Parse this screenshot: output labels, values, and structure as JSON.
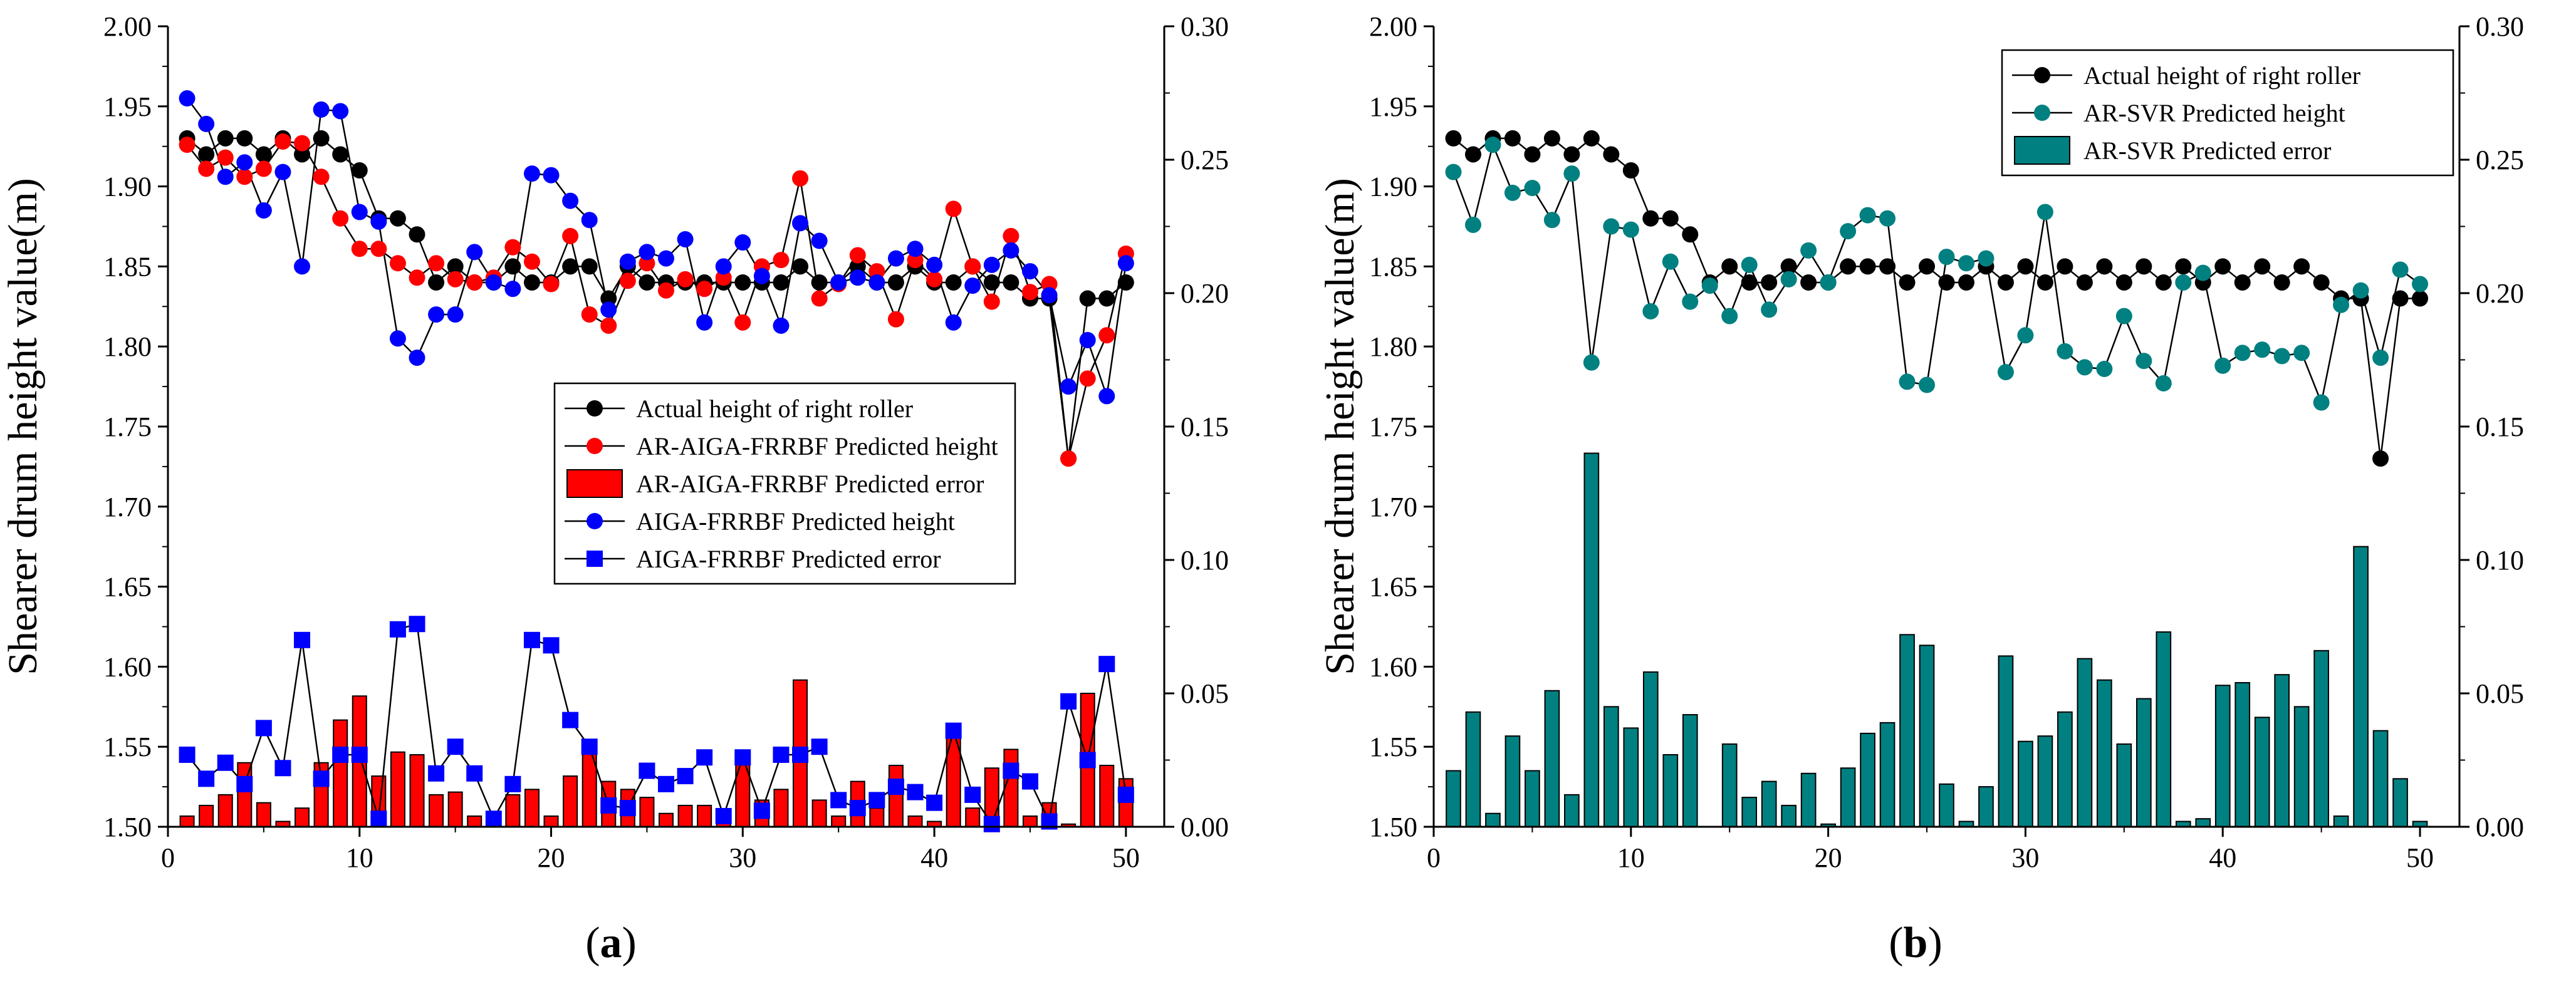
{
  "chart_data": [
    {
      "type": "line",
      "panel_label": "a",
      "title": "",
      "xlabel": "",
      "ylabel": "Shearer drum height value(m)",
      "xlim": [
        0,
        52
      ],
      "xticks": [
        0,
        10,
        20,
        30,
        40,
        50
      ],
      "ylim": [
        1.5,
        2.0
      ],
      "yticks": [
        "1.50",
        "1.55",
        "1.60",
        "1.65",
        "1.70",
        "1.75",
        "1.80",
        "1.85",
        "1.90",
        "1.95",
        "2.00"
      ],
      "y2lim": [
        0,
        0.3
      ],
      "y2ticks": [
        "0.00",
        "0.05",
        "0.10",
        "0.15",
        "0.20",
        "0.25",
        "0.30"
      ],
      "legend_position": "center-right",
      "x": [
        1,
        2,
        3,
        4,
        5,
        6,
        7,
        8,
        9,
        10,
        11,
        12,
        13,
        14,
        15,
        16,
        17,
        18,
        19,
        20,
        21,
        22,
        23,
        24,
        25,
        26,
        27,
        28,
        29,
        30,
        31,
        32,
        33,
        34,
        35,
        36,
        37,
        38,
        39,
        40,
        41,
        42,
        43,
        44,
        45,
        46,
        47,
        48,
        49,
        50
      ],
      "series": [
        {
          "name": "Actual height of right roller",
          "axis": "left",
          "kind": "line",
          "marker": "circle",
          "color": "#000000",
          "line_color": "#000000",
          "values": [
            1.93,
            1.92,
            1.93,
            1.93,
            1.92,
            1.93,
            1.92,
            1.93,
            1.92,
            1.91,
            1.88,
            1.88,
            1.87,
            1.84,
            1.85,
            1.84,
            1.84,
            1.85,
            1.84,
            1.84,
            1.85,
            1.85,
            1.83,
            1.85,
            1.84,
            1.84,
            1.84,
            1.84,
            1.84,
            1.84,
            1.84,
            1.84,
            1.85,
            1.84,
            1.84,
            1.85,
            1.84,
            1.84,
            1.85,
            1.84,
            1.84,
            1.85,
            1.84,
            1.84,
            1.83,
            1.83,
            1.73,
            1.83,
            1.83,
            1.84
          ]
        },
        {
          "name": "AR-AIGA-FRRBF Predicted height",
          "axis": "left",
          "kind": "line",
          "marker": "circle",
          "color": "#ff0000",
          "line_color": "#000000",
          "values": [
            1.926,
            1.911,
            1.918,
            1.906,
            1.911,
            1.928,
            1.927,
            1.906,
            1.88,
            1.861,
            1.861,
            1.852,
            1.843,
            1.852,
            1.842,
            1.84,
            1.843,
            1.862,
            1.853,
            1.839,
            1.869,
            1.82,
            1.813,
            1.841,
            1.852,
            1.835,
            1.842,
            1.836,
            1.843,
            1.815,
            1.85,
            1.854,
            1.905,
            1.83,
            1.839,
            1.857,
            1.847,
            1.817,
            1.854,
            1.842,
            1.886,
            1.85,
            1.828,
            1.869,
            1.834,
            1.839,
            1.73,
            1.78,
            1.807,
            1.858
          ]
        },
        {
          "name": "AR-AIGA-FRRBF Predicted error",
          "axis": "right",
          "kind": "bar",
          "color": "#ff0000",
          "line_color": "#000000",
          "values": [
            0.004,
            0.008,
            0.012,
            0.024,
            0.009,
            0.002,
            0.007,
            0.024,
            0.04,
            0.049,
            0.019,
            0.028,
            0.027,
            0.012,
            0.013,
            0.004,
            0.003,
            0.012,
            0.014,
            0.004,
            0.019,
            0.03,
            0.017,
            0.014,
            0.011,
            0.005,
            0.008,
            0.008,
            0.003,
            0.025,
            0.01,
            0.014,
            0.055,
            0.01,
            0.004,
            0.017,
            0.007,
            0.023,
            0.004,
            0.002,
            0.036,
            0.007,
            0.022,
            0.029,
            0.004,
            0.009,
            0.001,
            0.05,
            0.023,
            0.018
          ]
        },
        {
          "name": "AIGA-FRRBF Predicted height",
          "axis": "left",
          "kind": "line",
          "marker": "circle",
          "color": "#0000ff",
          "line_color": "#000000",
          "values": [
            1.955,
            1.939,
            1.906,
            1.915,
            1.885,
            1.909,
            1.85,
            1.948,
            1.947,
            1.884,
            1.878,
            1.805,
            1.793,
            1.82,
            1.82,
            1.859,
            1.84,
            1.836,
            1.908,
            1.907,
            1.891,
            1.879,
            1.823,
            1.853,
            1.859,
            1.855,
            1.867,
            1.815,
            1.85,
            1.865,
            1.844,
            1.813,
            1.877,
            1.866,
            1.84,
            1.843,
            1.84,
            1.855,
            1.861,
            1.851,
            1.815,
            1.838,
            1.851,
            1.86,
            1.847,
            1.832,
            1.775,
            1.804,
            1.769,
            1.852
          ]
        },
        {
          "name": "AIGA-FRRBF Predicted error",
          "axis": "right",
          "kind": "line",
          "marker": "square",
          "color": "#0000ff",
          "line_color": "#000000",
          "values": [
            0.027,
            0.018,
            0.024,
            0.016,
            0.037,
            0.022,
            0.07,
            0.018,
            0.027,
            0.027,
            0.003,
            0.074,
            0.076,
            0.02,
            0.03,
            0.02,
            0.003,
            0.016,
            0.07,
            0.068,
            0.04,
            0.03,
            0.008,
            0.007,
            0.021,
            0.016,
            0.019,
            0.026,
            0.004,
            0.026,
            0.006,
            0.027,
            0.027,
            0.03,
            0.01,
            0.007,
            0.01,
            0.015,
            0.013,
            0.009,
            0.036,
            0.012,
            0.001,
            0.021,
            0.017,
            0.002,
            0.047,
            0.025,
            0.061,
            0.012
          ]
        }
      ]
    },
    {
      "type": "line",
      "panel_label": "b",
      "title": "",
      "xlabel": "",
      "ylabel": "Shearer drum height value(m)",
      "xlim": [
        0,
        52
      ],
      "xticks": [
        0,
        10,
        20,
        30,
        40,
        50
      ],
      "ylim": [
        1.5,
        2.0
      ],
      "yticks": [
        "1.50",
        "1.55",
        "1.60",
        "1.65",
        "1.70",
        "1.75",
        "1.80",
        "1.85",
        "1.90",
        "1.95",
        "2.00"
      ],
      "y2lim": [
        0,
        0.3
      ],
      "y2ticks": [
        "0.00",
        "0.05",
        "0.10",
        "0.15",
        "0.20",
        "0.25",
        "0.30"
      ],
      "legend_position": "top-right",
      "x": [
        1,
        2,
        3,
        4,
        5,
        6,
        7,
        8,
        9,
        10,
        11,
        12,
        13,
        14,
        15,
        16,
        17,
        18,
        19,
        20,
        21,
        22,
        23,
        24,
        25,
        26,
        27,
        28,
        29,
        30,
        31,
        32,
        33,
        34,
        35,
        36,
        37,
        38,
        39,
        40,
        41,
        42,
        43,
        44,
        45,
        46,
        47,
        48,
        49,
        50
      ],
      "series": [
        {
          "name": "Actual height of right roller",
          "axis": "left",
          "kind": "line",
          "marker": "circle",
          "color": "#000000",
          "line_color": "#000000",
          "values": [
            1.93,
            1.92,
            1.93,
            1.93,
            1.92,
            1.93,
            1.92,
            1.93,
            1.92,
            1.91,
            1.88,
            1.88,
            1.87,
            1.84,
            1.85,
            1.84,
            1.84,
            1.85,
            1.84,
            1.84,
            1.85,
            1.85,
            1.85,
            1.84,
            1.85,
            1.84,
            1.84,
            1.85,
            1.84,
            1.85,
            1.84,
            1.85,
            1.84,
            1.85,
            1.84,
            1.85,
            1.84,
            1.85,
            1.84,
            1.85,
            1.84,
            1.85,
            1.84,
            1.85,
            1.84,
            1.83,
            1.83,
            1.73,
            1.83,
            1.83
          ]
        },
        {
          "name": "AR-SVR Predicted height",
          "axis": "left",
          "kind": "line",
          "marker": "circle",
          "color": "#008080",
          "line_color": "#000000",
          "values": [
            1.909,
            1.876,
            1.926,
            1.896,
            1.899,
            1.879,
            1.908,
            1.79,
            1.875,
            1.873,
            1.822,
            1.853,
            1.828,
            1.838,
            1.819,
            1.851,
            1.823,
            1.842,
            1.86,
            1.84,
            1.872,
            1.882,
            1.88,
            1.778,
            1.776,
            1.856,
            1.852,
            1.855,
            1.784,
            1.807,
            1.884,
            1.797,
            1.787,
            1.786,
            1.819,
            1.791,
            1.777,
            1.84,
            1.846,
            1.788,
            1.796,
            1.798,
            1.794,
            1.796,
            1.765,
            1.826,
            1.835,
            1.793,
            1.848,
            1.839
          ]
        },
        {
          "name": "AR-SVR Predicted error",
          "axis": "right",
          "kind": "bar",
          "color": "#008080",
          "line_color": "#000000",
          "values": [
            0.021,
            0.043,
            0.005,
            0.034,
            0.021,
            0.051,
            0.012,
            0.14,
            0.045,
            0.037,
            0.058,
            0.027,
            0.042,
            0.0,
            0.031,
            0.011,
            0.017,
            0.008,
            0.02,
            0.001,
            0.022,
            0.035,
            0.039,
            0.072,
            0.068,
            0.016,
            0.002,
            0.015,
            0.064,
            0.032,
            0.034,
            0.043,
            0.063,
            0.055,
            0.031,
            0.048,
            0.073,
            0.002,
            0.003,
            0.053,
            0.054,
            0.041,
            0.057,
            0.045,
            0.066,
            0.004,
            0.105,
            0.036,
            0.018,
            0.002
          ]
        }
      ]
    }
  ]
}
